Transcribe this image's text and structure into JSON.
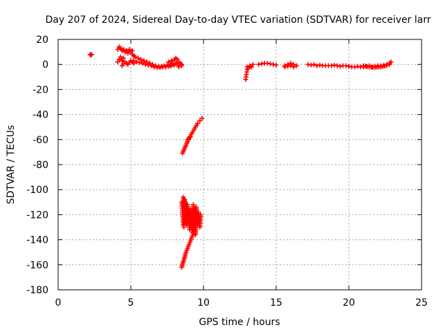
{
  "chart_data": {
    "type": "scatter",
    "title": "Day 207 of 2024, Sidereal Day-to-day VTEC variation (SDTVAR) for receiver larr",
    "xlabel": "GPS time / hours",
    "ylabel": "SDTVAR / TECUs",
    "xlim": [
      0,
      25
    ],
    "ylim": [
      -180,
      20
    ],
    "x_ticks": [
      0,
      5,
      10,
      15,
      20,
      25
    ],
    "y_ticks": [
      20,
      0,
      -20,
      -40,
      -60,
      -80,
      -100,
      -120,
      -140,
      -160,
      -180
    ],
    "grid": true,
    "marker": "plus",
    "color": "#ff0000",
    "segments": [
      {
        "x": [
          2.2,
          2.25,
          2.3
        ],
        "y": [
          8,
          7.5,
          8
        ]
      },
      {
        "x": [
          4.1,
          4.2,
          4.3,
          4.4,
          4.5,
          4.6,
          4.7,
          4.8,
          4.9,
          5.0,
          5.1
        ],
        "y": [
          12,
          14,
          13,
          11,
          12,
          10,
          11,
          9,
          12,
          10,
          11
        ]
      },
      {
        "x": [
          4.1,
          4.2,
          4.3,
          4.4,
          4.5
        ],
        "y": [
          2,
          4,
          6,
          3,
          5
        ]
      },
      {
        "x": [
          4.4,
          4.6,
          4.8,
          5.0,
          5.2
        ],
        "y": [
          -1,
          2,
          0,
          3,
          1
        ]
      },
      {
        "x": [
          5.1,
          5.3,
          5.5,
          5.7,
          5.9,
          6.1,
          6.3,
          6.5,
          6.7,
          6.9,
          7.1,
          7.3,
          7.5,
          7.7,
          7.9
        ],
        "y": [
          8,
          6,
          5,
          4,
          3,
          2,
          1,
          0,
          -1,
          -1.5,
          -1.5,
          -1,
          -0.5,
          0,
          1
        ]
      },
      {
        "x": [
          5.2,
          5.4,
          5.6,
          5.8,
          6.0,
          6.2,
          6.4,
          6.6,
          6.8,
          7.0,
          7.2,
          7.4,
          7.6,
          7.8,
          8.0
        ],
        "y": [
          3,
          2,
          1.5,
          1,
          0,
          -0.5,
          -1,
          -2,
          -2.5,
          -2.5,
          -2,
          -2,
          -1.5,
          -1,
          -0.5
        ]
      },
      {
        "x": [
          7.6,
          7.8,
          8.0,
          8.1,
          8.2,
          8.3,
          8.4,
          8.5
        ],
        "y": [
          2,
          3,
          4,
          5,
          4,
          2,
          1,
          0
        ]
      },
      {
        "x": [
          7.7,
          7.9,
          8.1,
          8.3,
          8.5
        ],
        "y": [
          -1,
          0,
          1,
          -2,
          -1
        ]
      },
      {
        "x": [
          8.55,
          8.7,
          8.85,
          9.0,
          9.15,
          9.3,
          9.45,
          9.6,
          9.75,
          9.9
        ],
        "y": [
          -71,
          -67,
          -63,
          -59,
          -56,
          -53,
          -50,
          -47,
          -45,
          -43
        ]
      },
      {
        "x": [
          8.9,
          9.0,
          9.1
        ],
        "y": [
          -60,
          -59,
          -58
        ]
      },
      {
        "x": [
          8.5,
          8.55,
          8.6,
          8.65,
          8.7,
          8.75,
          8.8,
          8.85,
          8.9,
          8.95,
          9.0,
          9.05,
          9.1,
          9.15,
          9.2,
          9.25,
          9.3,
          9.35,
          9.4,
          9.45,
          9.5,
          9.55,
          9.6,
          9.65,
          9.7,
          9.75,
          9.8
        ],
        "y": [
          -110,
          -118,
          -126,
          -130,
          -108,
          -114,
          -122,
          -128,
          -112,
          -120,
          -126,
          -132,
          -116,
          -124,
          -130,
          -134,
          -112,
          -118,
          -126,
          -136,
          -114,
          -122,
          -128,
          -118,
          -124,
          -130,
          -120
        ]
      },
      {
        "x": [
          8.5,
          8.6,
          8.7,
          8.8,
          8.9,
          9.0,
          9.1,
          9.2,
          9.3,
          9.4,
          9.5,
          9.6
        ],
        "y": [
          -162,
          -158,
          -154,
          -150,
          -147,
          -144,
          -141,
          -138,
          -135,
          -130,
          -126,
          -122
        ]
      },
      {
        "x": [
          8.6,
          8.7,
          8.8,
          8.9,
          9.0,
          9.1,
          9.2,
          9.3
        ],
        "y": [
          -106,
          -110,
          -114,
          -118,
          -122,
          -126,
          -120,
          -116
        ]
      },
      {
        "x": [
          12.9,
          12.95,
          13.0
        ],
        "y": [
          -12,
          -8,
          -4
        ]
      },
      {
        "x": [
          13.0,
          13.1,
          13.2,
          13.3,
          13.4
        ],
        "y": [
          -2,
          -3,
          -1,
          -2,
          0
        ]
      },
      {
        "x": [
          13.8,
          14.0,
          14.2,
          14.4,
          14.6,
          14.8,
          15.0
        ],
        "y": [
          0,
          0.5,
          1,
          1,
          0.5,
          0,
          -0.5
        ]
      },
      {
        "x": [
          15.6,
          15.8,
          16.0,
          16.2,
          16.4
        ],
        "y": [
          -1,
          0,
          1,
          0,
          -1
        ]
      },
      {
        "x": [
          15.6,
          15.8,
          16.0,
          16.2
        ],
        "y": [
          -2,
          -1.5,
          -1,
          -2
        ]
      },
      {
        "x": [
          17.2,
          17.4,
          17.6,
          17.8,
          18.0,
          18.2,
          18.4
        ],
        "y": [
          0,
          -0.5,
          0,
          -1,
          -0.5,
          -1,
          -1
        ]
      },
      {
        "x": [
          18.6,
          18.8,
          19.0,
          19.2,
          19.4,
          19.6,
          19.8,
          20.0
        ],
        "y": [
          -1,
          -1,
          -0.5,
          -1,
          -1.5,
          -1,
          -1,
          -1.5
        ]
      },
      {
        "x": [
          20.0,
          20.2,
          20.4,
          20.6,
          20.8,
          21.0,
          21.2,
          21.4,
          21.6,
          21.8,
          22.0,
          22.2,
          22.4,
          22.6,
          22.8,
          22.9
        ],
        "y": [
          -1.5,
          -2,
          -2,
          -1.5,
          -2,
          -2,
          -1.5,
          -1,
          -2,
          -1.5,
          -1,
          -1,
          -0.5,
          0,
          1,
          2
        ]
      },
      {
        "x": [
          21.0,
          21.4,
          21.8,
          22.2,
          22.6,
          22.8
        ],
        "y": [
          -1,
          -2,
          -2.5,
          -2,
          -1,
          0
        ]
      }
    ]
  }
}
